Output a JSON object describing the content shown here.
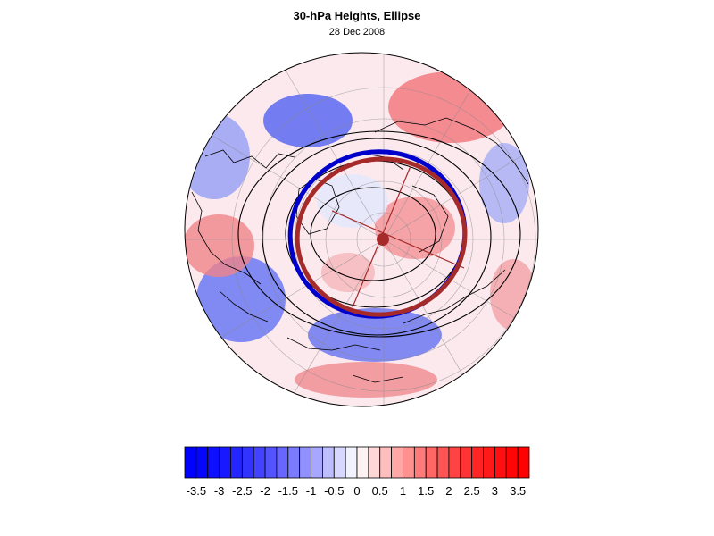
{
  "title": "30-hPa Heights, Ellipse",
  "subtitle": "28 Dec 2008",
  "colorbar": {
    "ticks": [
      "-3.5",
      "-3",
      "-2.5",
      "-2",
      "-1.5",
      "-1",
      "-0.5",
      "0",
      "0.5",
      "1",
      "1.5",
      "2",
      "2.5",
      "3",
      "3.5"
    ],
    "range": [
      -3.75,
      3.75
    ],
    "low_color": "#0000ff",
    "mid_color": "#ffffff",
    "high_color": "#ff0000"
  },
  "overlay_colors": {
    "ellipse_observed": "#0000cc",
    "ellipse_fit": "#a52a2a",
    "contours": "#000000",
    "coastlines": "#000000"
  }
}
